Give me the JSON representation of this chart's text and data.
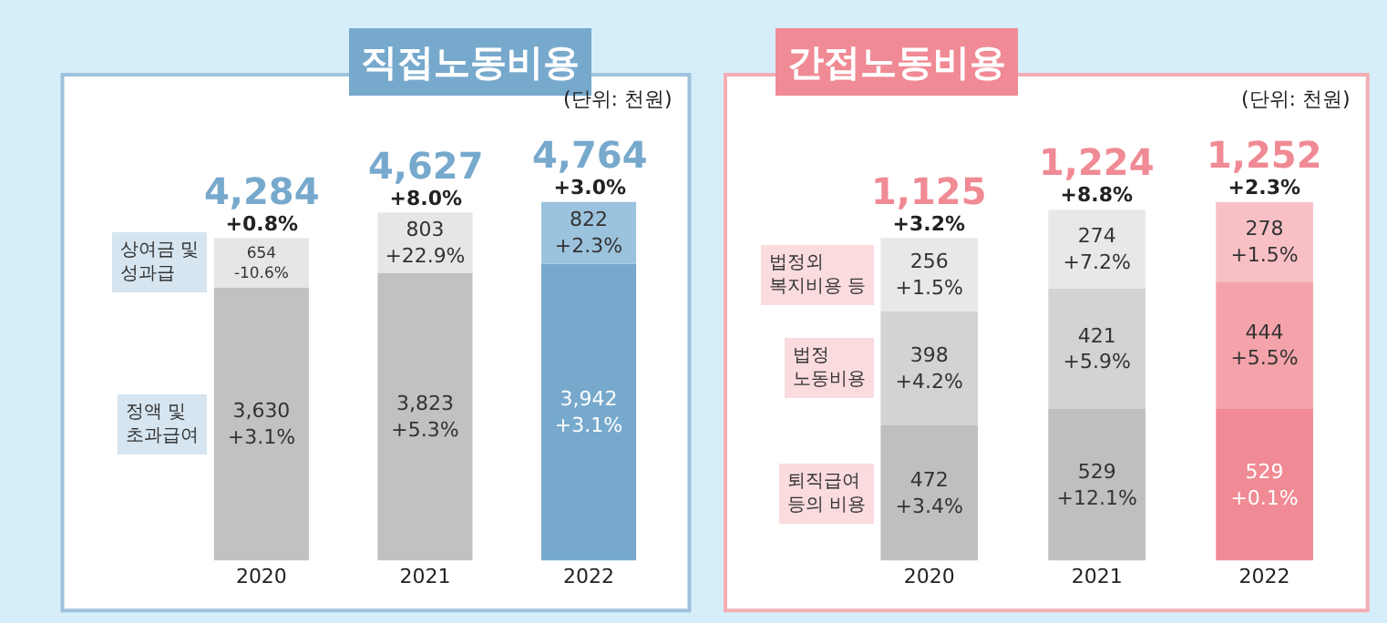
{
  "chart_data": [
    {
      "type": "bar",
      "stacked": true,
      "title": "직접노동비용",
      "subtitle": "(단위: 천원)",
      "categories": [
        "2020",
        "2021",
        "2022"
      ],
      "tick_labels": "x",
      "series": [
        {
          "name": "정액 및\n초과급여",
          "colors": [
            "#c1c1c3",
            "#c1c1c3",
            "#77a9cd"
          ],
          "values": [
            3630,
            3823,
            3942
          ],
          "value_labels": [
            "3,630\n+3.1%",
            "3,823\n+5.3%",
            "3,942\n+3.1%"
          ]
        },
        {
          "name": "상여금 및\n성과급",
          "colors": [
            "#e6e6e6",
            "#e6e6e6",
            "#9cc3de"
          ],
          "values": [
            654,
            803,
            822
          ],
          "value_labels": [
            "654\n-10.6%",
            "803\n+22.9%",
            "822\n+2.3%"
          ]
        }
      ],
      "totals": [
        "4,284\n+0.8%",
        "4,627\n+8.0%",
        "4,764\n+3.0%"
      ]
    },
    {
      "type": "bar",
      "stacked": true,
      "title": "간접노동비용",
      "subtitle": "(단위: 천원)",
      "categories": [
        "2020",
        "2021",
        "2022"
      ],
      "tick_labels": "x",
      "series": [
        {
          "name": "퇴직급여\n등의 비용",
          "colors": [
            "#bfbfbf",
            "#bfbfbf",
            "#f08a94"
          ],
          "values": [
            472,
            529,
            529
          ],
          "value_labels": [
            "472\n+3.4%",
            "529\n+12.1%",
            "529\n+0.1%"
          ]
        },
        {
          "name": "법정\n노동비용",
          "colors": [
            "#d3d3d3",
            "#d3d3d3",
            "#f4a3aa"
          ],
          "values": [
            398,
            421,
            444
          ],
          "value_labels": [
            "398\n+4.2%",
            "421\n+5.9%",
            "444\n+5.5%"
          ]
        },
        {
          "name": "법정외\n복지비용 등",
          "colors": [
            "#e8e8e8",
            "#e8e8e8",
            "#f8c0c5"
          ],
          "values": [
            256,
            274,
            278
          ],
          "value_labels": [
            "256\n+1.5%",
            "274\n+7.2%",
            "278\n+1.5%"
          ]
        }
      ],
      "totals": [
        "1,125\n+3.2%",
        "1,224\n+8.8%",
        "1,252\n+2.3%"
      ]
    }
  ]
}
